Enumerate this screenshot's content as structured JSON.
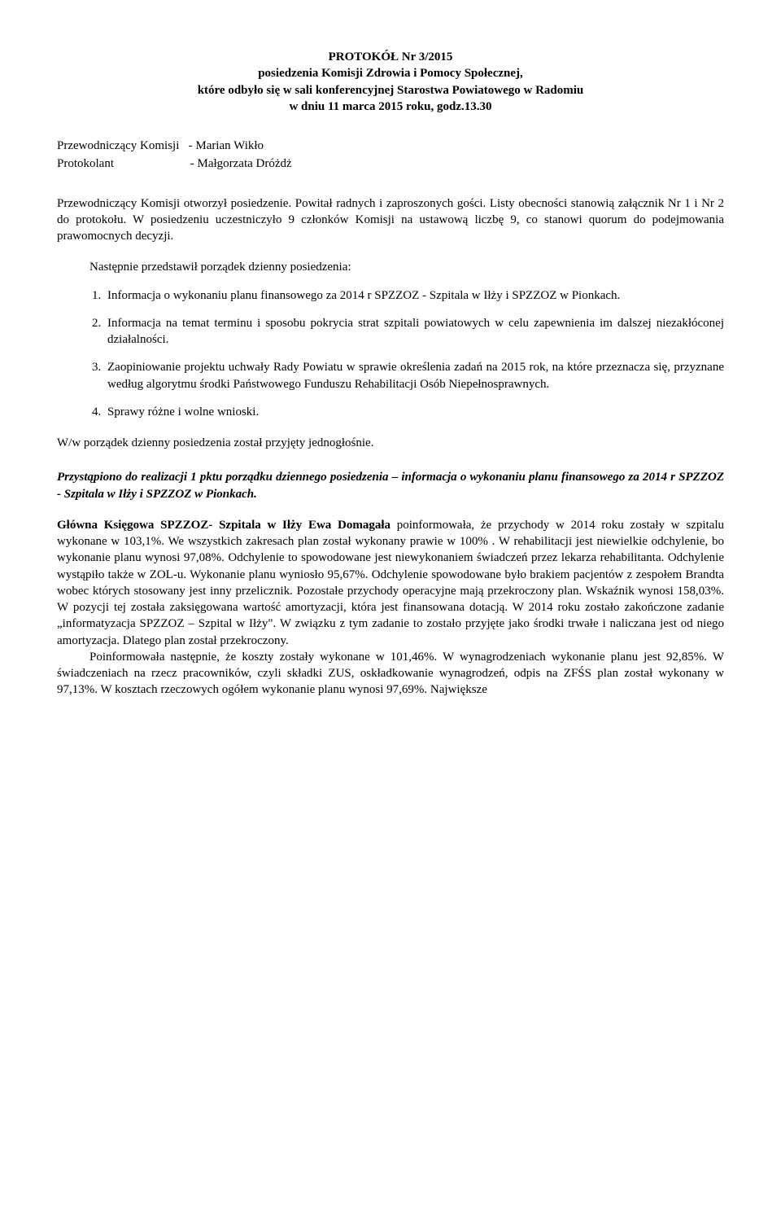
{
  "header": {
    "l1": "PROTOKÓŁ  Nr 3/2015",
    "l2": "posiedzenia Komisji Zdrowia i Pomocy Społecznej,",
    "l3": "które odbyło się w sali konferencyjnej Starostwa Powiatowego w Radomiu",
    "l4": "w dniu 11 marca 2015 roku, godz.13.30"
  },
  "leaders": {
    "row1_left": "Przewodniczący Komisji",
    "row1_right": "-  Marian Wikło",
    "row2_left": "Protokolant",
    "row2_right": "-  Małgorzata Dróżdż"
  },
  "intro": "Przewodniczący Komisji otworzył posiedzenie. Powitał radnych i zaproszonych gości. Listy obecności stanowią załącznik Nr 1 i Nr 2 do protokołu. W posiedzeniu uczestniczyło 9 członków Komisji na ustawową liczbę 9, co stanowi quorum do podejmowania prawomocnych decyzji.",
  "agenda_intro": "Następnie przedstawił porządek dzienny posiedzenia:",
  "agenda": [
    "Informacja o wykonaniu planu finansowego za 2014 r SPZZOZ - Szpitala w Iłży i SPZZOZ w Pionkach.",
    "Informacja na temat terminu i sposobu pokrycia strat szpitali powiatowych w celu zapewnienia im dalszej niezakłóconej działalności.",
    "Zaopiniowanie projektu uchwały Rady Powiatu w sprawie określenia zadań na 2015 rok, na które przeznacza się, przyznane według algorytmu środki  Państwowego Funduszu Rehabilitacji Osób Niepełnosprawnych.",
    "Sprawy różne i wolne wnioski."
  ],
  "adopted": "W/w porządek dzienny posiedzenia został przyjęty jednogłośnie.",
  "section_title": "Przystąpiono do realizacji 1 pktu porządku dziennego posiedzenia – informacja o wykonaniu planu finansowego za 2014 r SPZZOZ - Szpitala w Iłży i SPZZOZ w Pionkach.",
  "body": {
    "lead": "Główna Księgowa SPZZOZ- Szpitala w Iłży Ewa Domagała ",
    "p1": "poinformowała, że przychody w 2014 roku zostały w szpitalu wykonane w 103,1%. We wszystkich zakresach plan został wykonany prawie w 100% . W rehabilitacji jest niewielkie odchylenie, bo wykonanie planu wynosi 97,08%. Odchylenie to spowodowane jest niewykonaniem świadczeń przez lekarza rehabilitanta. Odchylenie wystąpiło także w ZOL-u. Wykonanie planu  wyniosło 95,67%. Odchylenie spowodowane było brakiem pacjentów z zespołem Brandta wobec których stosowany jest inny przelicznik. Pozostałe przychody operacyjne mają przekroczony plan. Wskaźnik wynosi 158,03%. W pozycji tej została zaksięgowana wartość amortyzacji, która jest finansowana dotacją. W 2014 roku zostało zakończone zadanie „informatyzacja SPZZOZ – Szpital w Iłży\". W związku z tym zadanie to zostało przyjęte jako środki trwałe i naliczana jest od niego amortyzacja. Dlatego plan został przekroczony.",
    "p2": "Poinformowała następnie, że koszty zostały wykonane w 101,46%. W wynagrodzeniach wykonanie planu jest 92,85%. W świadczeniach na rzecz pracowników, czyli składki ZUS, oskładkowanie wynagrodzeń, odpis na ZFŚS plan został wykonany w 97,13%. W kosztach rzeczowych ogółem wykonanie planu wynosi 97,69%. Największe"
  }
}
